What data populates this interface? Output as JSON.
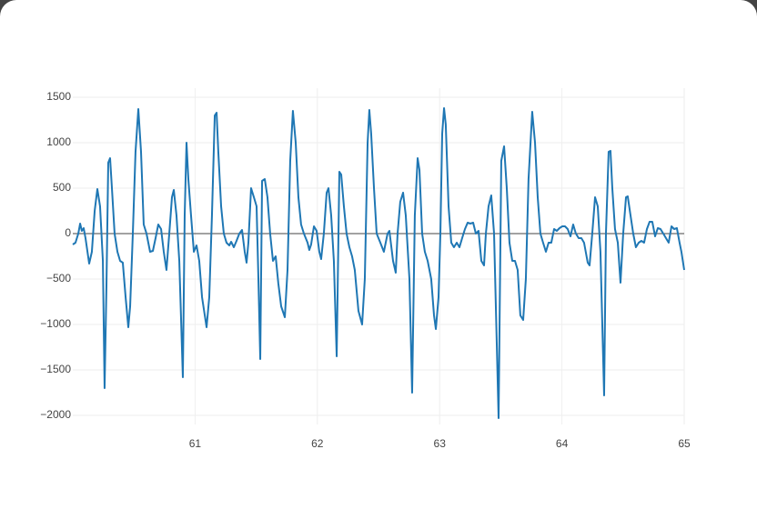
{
  "chart_data": {
    "type": "line",
    "color": "#1f77b4",
    "grid": true,
    "zeroline": true,
    "xlim": [
      60,
      65
    ],
    "xticks": [
      61,
      62,
      63,
      64,
      65
    ],
    "ylim": [
      -2100,
      1600
    ],
    "yticks": [
      1500,
      1000,
      500,
      0,
      {
        "value": -500,
        "label": "−500"
      },
      {
        "value": -1000,
        "label": "−1000"
      },
      {
        "value": -1500,
        "label": "−1500"
      },
      {
        "value": -2000,
        "label": "−2000"
      }
    ],
    "x": [
      60,
      60.022,
      60.045,
      60.06,
      60.074,
      60.089,
      60.104,
      60.134,
      60.156,
      60.179,
      60.201,
      60.223,
      60.246,
      60.26,
      60.275,
      60.29,
      60.305,
      60.32,
      60.342,
      60.365,
      60.387,
      60.409,
      60.432,
      60.454,
      60.469,
      60.491,
      60.513,
      60.536,
      60.558,
      60.58,
      60.603,
      60.632,
      60.655,
      60.677,
      60.699,
      60.722,
      60.744,
      60.766,
      60.789,
      60.811,
      60.826,
      60.848,
      60.871,
      60.9,
      60.915,
      60.93,
      60.945,
      60.967,
      60.99,
      61.012,
      61.034,
      61.057,
      61.094,
      61.116,
      61.138,
      61.161,
      61.176,
      61.19,
      61.213,
      61.235,
      61.257,
      61.28,
      61.295,
      61.317,
      61.339,
      61.362,
      61.384,
      61.406,
      61.421,
      61.436,
      61.458,
      61.481,
      61.503,
      61.518,
      61.533,
      61.548,
      61.57,
      61.592,
      61.614,
      61.637,
      61.659,
      61.681,
      61.704,
      61.734,
      61.756,
      61.778,
      61.8,
      61.823,
      61.845,
      61.867,
      61.89,
      61.92,
      61.934,
      61.949,
      61.972,
      61.994,
      62.016,
      62.031,
      62.053,
      62.076,
      62.091,
      62.113,
      62.135,
      62.158,
      62.18,
      62.195,
      62.217,
      62.239,
      62.262,
      62.284,
      62.306,
      62.336,
      62.366,
      62.388,
      62.411,
      62.425,
      62.44,
      62.463,
      62.485,
      62.515,
      62.544,
      62.574,
      62.589,
      62.619,
      62.641,
      62.656,
      62.678,
      62.701,
      62.723,
      62.753,
      62.775,
      62.797,
      62.82,
      62.835,
      62.857,
      62.879,
      62.902,
      62.931,
      62.954,
      62.969,
      62.991,
      63.006,
      63.021,
      63.036,
      63.05,
      63.073,
      63.095,
      63.117,
      63.14,
      63.162,
      63.184,
      63.207,
      63.229,
      63.251,
      63.274,
      63.296,
      63.318,
      63.341,
      63.363,
      63.378,
      63.4,
      63.422,
      63.445,
      63.467,
      63.482,
      63.504,
      63.527,
      63.549,
      63.571,
      63.594,
      63.616,
      63.638,
      63.66,
      63.683,
      63.705,
      63.727,
      63.757,
      63.78,
      63.802,
      63.824,
      63.846,
      63.869,
      63.891,
      63.913,
      63.936,
      63.958,
      63.98,
      64.003,
      64.025,
      64.047,
      64.07,
      64.092,
      64.114,
      64.137,
      64.159,
      64.181,
      64.211,
      64.226,
      64.248,
      64.271,
      64.293,
      64.315,
      64.345,
      64.36,
      64.382,
      64.397,
      64.412,
      64.434,
      64.457,
      64.479,
      64.501,
      64.524,
      64.538,
      64.561,
      64.583,
      64.605,
      64.628,
      64.65,
      64.672,
      64.695,
      64.717,
      64.739,
      64.762,
      64.784,
      64.806,
      64.829,
      64.851,
      64.873,
      64.896,
      64.918,
      64.94,
      64.962,
      64.977,
      65
    ],
    "values": [
      -120,
      -100,
      0,
      110,
      30,
      60,
      -50,
      -330,
      -200,
      250,
      490,
      300,
      -300,
      -1700,
      -600,
      780,
      830,
      500,
      0,
      -200,
      -300,
      -320,
      -700,
      -1030,
      -800,
      0,
      900,
      1370,
      900,
      100,
      0,
      -200,
      -190,
      -50,
      100,
      50,
      -200,
      -400,
      0,
      400,
      480,
      200,
      -300,
      -1580,
      200,
      1000,
      600,
      200,
      -200,
      -130,
      -300,
      -700,
      -1030,
      -700,
      200,
      1300,
      1330,
      900,
      300,
      0,
      -100,
      -130,
      -90,
      -150,
      -80,
      0,
      40,
      -200,
      -320,
      -100,
      500,
      400,
      300,
      -500,
      -1380,
      580,
      600,
      400,
      0,
      -300,
      -250,
      -550,
      -800,
      -920,
      -400,
      800,
      1350,
      1000,
      400,
      100,
      0,
      -100,
      -180,
      -120,
      80,
      30,
      -200,
      -280,
      0,
      450,
      500,
      200,
      -300,
      -1350,
      680,
      650,
      300,
      0,
      -150,
      -250,
      -400,
      -850,
      -1000,
      -500,
      1000,
      1360,
      1100,
      500,
      0,
      -100,
      -200,
      0,
      30,
      -300,
      -430,
      0,
      350,
      450,
      200,
      -500,
      -1750,
      200,
      830,
      700,
      0,
      -200,
      -300,
      -500,
      -900,
      -1050,
      -700,
      0,
      1100,
      1380,
      1200,
      300,
      -100,
      -150,
      -100,
      -150,
      -50,
      50,
      120,
      110,
      120,
      0,
      30,
      -300,
      -350,
      0,
      300,
      420,
      0,
      -1200,
      -2030,
      800,
      960,
      500,
      -100,
      -300,
      -300,
      -400,
      -900,
      -950,
      -500,
      600,
      1340,
      1000,
      400,
      0,
      -100,
      -200,
      -100,
      -100,
      50,
      30,
      60,
      80,
      80,
      50,
      -30,
      100,
      0,
      -50,
      -50,
      -100,
      -320,
      -350,
      0,
      400,
      300,
      -200,
      -1780,
      0,
      900,
      910,
      500,
      50,
      -100,
      -540,
      0,
      400,
      410,
      200,
      0,
      -150,
      -100,
      -80,
      -100,
      50,
      130,
      130,
      -30,
      60,
      50,
      0,
      -50,
      -100,
      80,
      50,
      60,
      -100,
      -200,
      -400
    ]
  }
}
